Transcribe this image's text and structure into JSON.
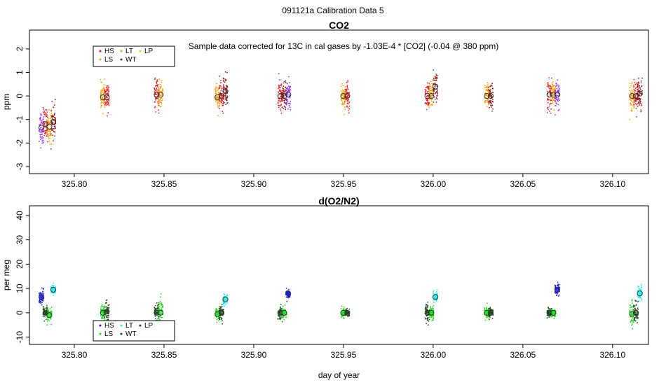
{
  "page_title": "091121a   Calibration Data 5",
  "colors": {
    "HS": "#e41a1c",
    "LS": "#ff9f00",
    "LT": "#ff9f00",
    "WT": "#8b1a1a",
    "LP": "#ffc000",
    "violet": "#9b30ff",
    "o2_HS": "#1a1ae6",
    "o2_LS": "#22dd22",
    "o2_WT": "#1a4d1a",
    "o2_LP": "#22eeee",
    "mean_marker": "#555555"
  },
  "chart_data": [
    {
      "type": "scatter",
      "title": "CO2",
      "ylabel": "ppm",
      "xlabel": "",
      "note": "Sample data corrected for 13C in cal gases by -1.03E-4 * [CO2] (-0.04 @ 380 ppm)",
      "xlim": [
        325.775,
        326.12
      ],
      "ylim": [
        -3.3,
        2.8
      ],
      "x_ticks": [
        325.8,
        325.85,
        325.9,
        325.95,
        326.0,
        326.05,
        326.1
      ],
      "x_tick_labels": [
        "325.80",
        "325.85",
        "325.90",
        "325.95",
        "326.00",
        "326.05",
        "326.10"
      ],
      "y_ticks": [
        -3,
        -2,
        -1,
        0,
        1,
        2
      ],
      "y_tick_labels": [
        "-3",
        "-2",
        "-1",
        "0",
        "1",
        "2"
      ],
      "legend": {
        "position": "top-left",
        "entries": [
          "HS",
          "LS",
          "LT",
          "WT",
          "LP"
        ]
      },
      "groups": [
        {
          "x": 325.785,
          "clusters": [
            {
              "color": "violet",
              "mean": -1.35,
              "spread": 0.65
            },
            {
              "color": "HS",
              "mean": -1.2,
              "spread": 0.6
            },
            {
              "color": "LS",
              "mean": -1.3,
              "spread": 0.6
            },
            {
              "color": "WT",
              "mean": -1.1,
              "spread": 0.6
            }
          ]
        },
        {
          "x": 325.817,
          "clusters": [
            {
              "color": "LS",
              "mean": -0.05,
              "spread": 0.5
            },
            {
              "color": "HS",
              "mean": -0.05,
              "spread": 0.5
            }
          ]
        },
        {
          "x": 325.847,
          "clusters": [
            {
              "color": "HS",
              "mean": 0.05,
              "spread": 0.55
            },
            {
              "color": "LS",
              "mean": 0.05,
              "spread": 0.5
            }
          ]
        },
        {
          "x": 325.882,
          "clusters": [
            {
              "color": "LS",
              "mean": -0.05,
              "spread": 0.5
            },
            {
              "color": "HS",
              "mean": 0.0,
              "spread": 0.5
            },
            {
              "color": "WT",
              "mean": 0.2,
              "spread": 0.6
            }
          ]
        },
        {
          "x": 325.917,
          "clusters": [
            {
              "color": "HS",
              "mean": 0.0,
              "spread": 0.55
            },
            {
              "color": "WT",
              "mean": 0.0,
              "spread": 0.5
            },
            {
              "color": "violet",
              "mean": 0.05,
              "spread": 0.55
            }
          ]
        },
        {
          "x": 325.951,
          "clusters": [
            {
              "color": "LS",
              "mean": 0.0,
              "spread": 0.5
            },
            {
              "color": "HS",
              "mean": 0.0,
              "spread": 0.5
            }
          ]
        },
        {
          "x": 325.999,
          "clusters": [
            {
              "color": "HS",
              "mean": 0.0,
              "spread": 0.55
            },
            {
              "color": "LS",
              "mean": 0.0,
              "spread": 0.5
            },
            {
              "color": "WT",
              "mean": 0.4,
              "spread": 0.6
            }
          ]
        },
        {
          "x": 326.031,
          "clusters": [
            {
              "color": "LS",
              "mean": 0.0,
              "spread": 0.45
            },
            {
              "color": "WT",
              "mean": 0.0,
              "spread": 0.45
            }
          ]
        },
        {
          "x": 326.067,
          "clusters": [
            {
              "color": "HS",
              "mean": 0.05,
              "spread": 0.6
            },
            {
              "color": "LS",
              "mean": 0.05,
              "spread": 0.45
            },
            {
              "color": "violet",
              "mean": 0.05,
              "spread": 0.55
            }
          ]
        },
        {
          "x": 326.113,
          "clusters": [
            {
              "color": "LS",
              "mean": 0.0,
              "spread": 0.55
            },
            {
              "color": "HS",
              "mean": 0.0,
              "spread": 0.55
            },
            {
              "color": "WT",
              "mean": 0.1,
              "spread": 0.6
            }
          ]
        }
      ]
    },
    {
      "type": "scatter",
      "title": "d(O2/N2)",
      "ylabel": "per meg",
      "xlabel": "day of year",
      "xlim": [
        325.775,
        326.12
      ],
      "ylim": [
        -13,
        44
      ],
      "x_ticks": [
        325.8,
        325.85,
        325.9,
        325.95,
        326.0,
        326.05,
        326.1
      ],
      "x_tick_labels": [
        "325.80",
        "325.85",
        "325.90",
        "325.95",
        "326.00",
        "326.05",
        "326.10"
      ],
      "y_ticks": [
        -10,
        0,
        10,
        20,
        30,
        40
      ],
      "y_tick_labels": [
        "-10",
        "0",
        "10",
        "20",
        "30",
        "40"
      ],
      "legend": {
        "position": "bottom-left",
        "entries": [
          "HS",
          "LS",
          "LT",
          "WT",
          "LP"
        ]
      },
      "groups": [
        {
          "x": 325.785,
          "clusters": [
            {
              "color": "o2_HS",
              "mean": 6.5,
              "spread": 2.5
            },
            {
              "color": "o2_WT",
              "mean": 0.0,
              "spread": 2.5
            },
            {
              "color": "o2_LS",
              "mean": -1.0,
              "spread": 3.0
            },
            {
              "color": "o2_LP",
              "mean": 9.5,
              "spread": 2.0
            }
          ]
        },
        {
          "x": 325.817,
          "clusters": [
            {
              "color": "o2_LS",
              "mean": 0.0,
              "spread": 3.0
            },
            {
              "color": "o2_WT",
              "mean": 0.5,
              "spread": 4.0
            }
          ]
        },
        {
          "x": 325.847,
          "clusters": [
            {
              "color": "o2_WT",
              "mean": 0.0,
              "spread": 3.0
            },
            {
              "color": "o2_LS",
              "mean": 0.0,
              "spread": 4.5
            }
          ]
        },
        {
          "x": 325.882,
          "clusters": [
            {
              "color": "o2_LS",
              "mean": -0.5,
              "spread": 3.0
            },
            {
              "color": "o2_WT",
              "mean": 0.0,
              "spread": 2.5
            },
            {
              "color": "o2_LP",
              "mean": 5.5,
              "spread": 2.0
            }
          ]
        },
        {
          "x": 325.917,
          "clusters": [
            {
              "color": "o2_WT",
              "mean": 0.0,
              "spread": 2.5
            },
            {
              "color": "o2_LS",
              "mean": 0.0,
              "spread": 2.0
            },
            {
              "color": "o2_HS",
              "mean": 8.0,
              "spread": 1.8
            }
          ]
        },
        {
          "x": 325.951,
          "clusters": [
            {
              "color": "o2_LS",
              "mean": 0.0,
              "spread": 1.8
            },
            {
              "color": "o2_WT",
              "mean": 0.0,
              "spread": 1.8
            }
          ]
        },
        {
          "x": 325.999,
          "clusters": [
            {
              "color": "o2_WT",
              "mean": 0.0,
              "spread": 3.0
            },
            {
              "color": "o2_LS",
              "mean": 0.0,
              "spread": 2.5
            },
            {
              "color": "o2_LP",
              "mean": 6.5,
              "spread": 2.0
            }
          ]
        },
        {
          "x": 326.031,
          "clusters": [
            {
              "color": "o2_LS",
              "mean": 0.0,
              "spread": 2.0
            },
            {
              "color": "o2_WT",
              "mean": 0.0,
              "spread": 2.0
            }
          ]
        },
        {
          "x": 326.067,
          "clusters": [
            {
              "color": "o2_WT",
              "mean": 0.0,
              "spread": 1.8
            },
            {
              "color": "o2_LS",
              "mean": 0.0,
              "spread": 1.8
            },
            {
              "color": "o2_HS",
              "mean": 9.5,
              "spread": 2.2
            }
          ]
        },
        {
          "x": 326.113,
          "clusters": [
            {
              "color": "o2_LS",
              "mean": -0.5,
              "spread": 4.5
            },
            {
              "color": "o2_WT",
              "mean": 0.0,
              "spread": 4.0
            },
            {
              "color": "o2_LP",
              "mean": 8.0,
              "spread": 3.0
            }
          ]
        }
      ]
    }
  ]
}
